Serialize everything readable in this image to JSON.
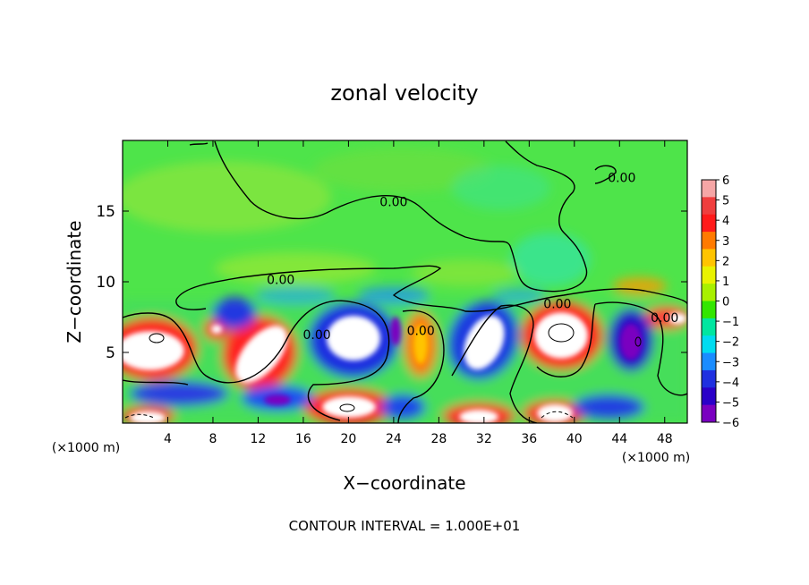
{
  "chart_data": {
    "type": "heatmap",
    "title": "zonal velocity",
    "xlabel": "X−coordinate",
    "ylabel": "Z−coordinate",
    "x_unit_left": "(×1000 m)",
    "x_unit_right": "(×1000 m)",
    "xlim": [
      0,
      50
    ],
    "ylim": [
      0,
      20
    ],
    "x_ticks": [
      4,
      8,
      12,
      16,
      20,
      24,
      28,
      32,
      36,
      40,
      44,
      48
    ],
    "y_ticks": [
      5,
      10,
      15
    ],
    "colorbar": {
      "ticks": [
        6,
        5,
        4,
        3,
        2,
        1,
        0,
        -1,
        -2,
        -3,
        -4,
        -5,
        -6
      ],
      "labels": [
        "6",
        "5",
        "4",
        "3",
        "2",
        "1",
        "0",
        "−1",
        "−2",
        "−3",
        "−4",
        "−5",
        "−6"
      ],
      "colors": [
        "#f5a6a6",
        "#ef3e3e",
        "#ff1a1a",
        "#ff7a00",
        "#ffc400",
        "#e9f200",
        "#a8f000",
        "#33e600",
        "#00e6a0",
        "#00dcf0",
        "#1a8cff",
        "#2030e0",
        "#2a00c8",
        "#7a00c0"
      ]
    },
    "contour_label": "0.00",
    "contour_labels": [
      {
        "x": 14,
        "z": 10.1
      },
      {
        "x": 24,
        "z": 15.6
      },
      {
        "x": 44.2,
        "z": 17.3
      },
      {
        "x": 17.2,
        "z": 6.2
      },
      {
        "x": 26.4,
        "z": 6.5
      },
      {
        "x": 38.5,
        "z": 8.4
      },
      {
        "x": 48,
        "z": 7.4
      }
    ],
    "annotation": "CONTOUR INTERVAL = 1.000E+01"
  }
}
